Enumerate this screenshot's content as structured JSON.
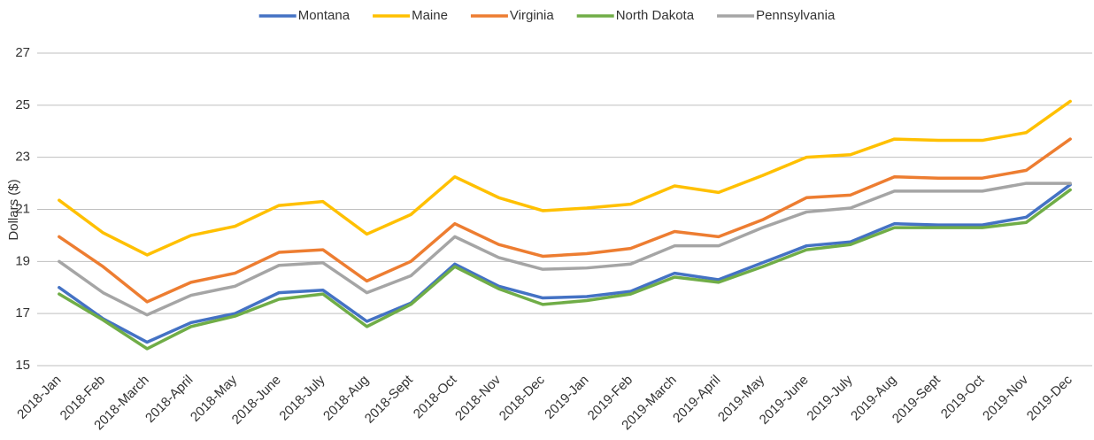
{
  "chart_data": {
    "type": "line",
    "y_label": "Dollars ($)",
    "categories": [
      "2018-Jan",
      "2018-Feb",
      "2018-March",
      "2018-April",
      "2018-May",
      "2018-June",
      "2018-July",
      "2018-Aug",
      "2018-Sept",
      "2018-Oct",
      "2018-Nov",
      "2018-Dec",
      "2019-Jan",
      "2019-Feb",
      "2019-March",
      "2019-April",
      "2019-May",
      "2019-June",
      "2019-July",
      "2019-Aug",
      "2019-Sept",
      "2019-Oct",
      "2019-Nov",
      "2019-Dec"
    ],
    "series": [
      {
        "name": "Montana",
        "color": "#4472c4",
        "values": [
          18.0,
          16.8,
          15.9,
          16.65,
          17.0,
          17.8,
          17.9,
          16.7,
          17.4,
          18.9,
          18.05,
          17.6,
          17.65,
          17.85,
          18.55,
          18.3,
          18.95,
          19.6,
          19.75,
          20.45,
          20.4,
          20.4,
          20.7,
          21.95
        ]
      },
      {
        "name": "Maine",
        "color": "#ffc000",
        "values": [
          21.35,
          20.1,
          19.25,
          20.0,
          20.35,
          21.15,
          21.3,
          20.05,
          20.8,
          22.25,
          21.45,
          20.95,
          21.05,
          21.2,
          21.9,
          21.65,
          22.3,
          23.0,
          23.1,
          23.7,
          23.65,
          23.65,
          23.95,
          25.15
        ]
      },
      {
        "name": "Virginia",
        "color": "#ed7d31",
        "values": [
          19.95,
          18.8,
          17.45,
          18.2,
          18.55,
          19.35,
          19.45,
          18.25,
          19.0,
          20.45,
          19.65,
          19.2,
          19.3,
          19.5,
          20.15,
          19.95,
          20.6,
          21.45,
          21.55,
          22.25,
          22.2,
          22.2,
          22.5,
          23.7
        ]
      },
      {
        "name": "North Dakota",
        "color": "#70ad47",
        "values": [
          17.75,
          16.75,
          15.65,
          16.5,
          16.9,
          17.55,
          17.75,
          16.5,
          17.35,
          18.8,
          17.95,
          17.35,
          17.5,
          17.75,
          18.4,
          18.2,
          18.8,
          19.45,
          19.65,
          20.3,
          20.3,
          20.3,
          20.5,
          21.75
        ]
      },
      {
        "name": "Pennsylvania",
        "color": "#a5a5a5",
        "values": [
          19.0,
          17.8,
          16.95,
          17.7,
          18.05,
          18.85,
          18.95,
          17.8,
          18.45,
          19.95,
          19.15,
          18.7,
          18.75,
          18.9,
          19.6,
          19.6,
          20.3,
          20.9,
          21.05,
          21.7,
          21.7,
          21.7,
          22.0,
          22.0
        ]
      }
    ],
    "ylim": [
      15,
      27
    ],
    "yticks": [
      15,
      17,
      19,
      21,
      23,
      25,
      27
    ],
    "grid": true,
    "legend": "top"
  }
}
